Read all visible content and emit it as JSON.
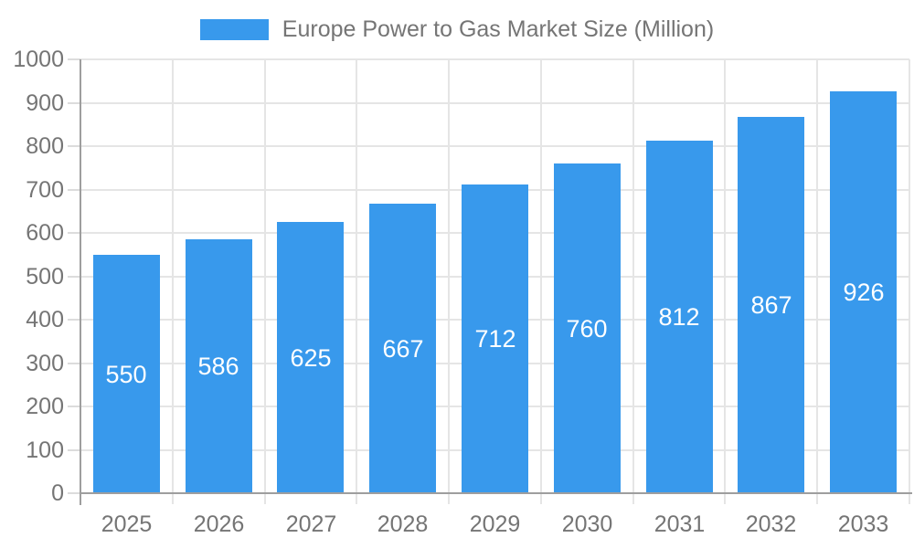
{
  "legend": {
    "label": "Europe Power to Gas Market Size (Million)"
  },
  "chart_data": {
    "type": "bar",
    "title": "Europe Power to Gas Market Size (Million)",
    "series": [
      {
        "name": "Europe Power to Gas Market Size (Million)",
        "values": [
          550,
          586,
          625,
          667,
          712,
          760,
          812,
          867,
          926
        ]
      }
    ],
    "categories": [
      "2025",
      "2026",
      "2027",
      "2028",
      "2029",
      "2030",
      "2031",
      "2032",
      "2033"
    ],
    "values": [
      550,
      586,
      625,
      667,
      712,
      760,
      812,
      867,
      926
    ],
    "value_labels": [
      "550",
      "586",
      "625",
      "667",
      "712",
      "760",
      "812",
      "867",
      "926"
    ],
    "xlabel": "",
    "ylabel": "",
    "ylim": [
      0,
      1000
    ],
    "ytick_step": 100,
    "ytick_labels": [
      "0",
      "100",
      "200",
      "300",
      "400",
      "500",
      "600",
      "700",
      "800",
      "900",
      "1000"
    ],
    "grid": "on",
    "legend_position": "top-center",
    "value_label_position": "inside-center"
  },
  "colors": {
    "bar": "#3899EC",
    "grid": "#E5E5E5",
    "tick": "#DCDCDC",
    "axis": "#9E9E9E",
    "text": "#757575",
    "value_text": "#FFFFFF",
    "background": "#FFFFFF"
  }
}
